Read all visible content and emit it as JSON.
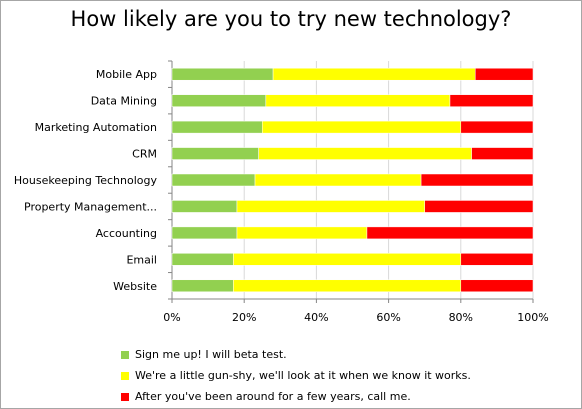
{
  "chart_data": {
    "type": "bar",
    "orientation": "horizontal",
    "stacked": "percent",
    "title": "How likely are you to try new technology?",
    "categories": [
      "Mobile App",
      "Data Mining",
      "Marketing Automation",
      "CRM",
      "Housekeeping Technology",
      "Property Management...",
      "Accounting",
      "Email",
      "Website"
    ],
    "series": [
      {
        "name": "Sign me up! I will beta test.",
        "color": "#92d050",
        "values": [
          28,
          26,
          25,
          24,
          23,
          18,
          18,
          17,
          17
        ]
      },
      {
        "name": "We're a little gun-shy, we'll look at it when we know it works.",
        "color": "#ffff00",
        "values": [
          56,
          51,
          55,
          59,
          46,
          52,
          36,
          63,
          63
        ]
      },
      {
        "name": "After you've been around for a few years, call me.",
        "color": "#ff0000",
        "values": [
          16,
          23,
          20,
          17,
          31,
          30,
          46,
          20,
          20
        ]
      }
    ],
    "xlim": [
      0,
      100
    ],
    "x_ticks": [
      "0%",
      "20%",
      "40%",
      "60%",
      "80%",
      "100%"
    ],
    "grid": true,
    "legend_position": "bottom"
  }
}
